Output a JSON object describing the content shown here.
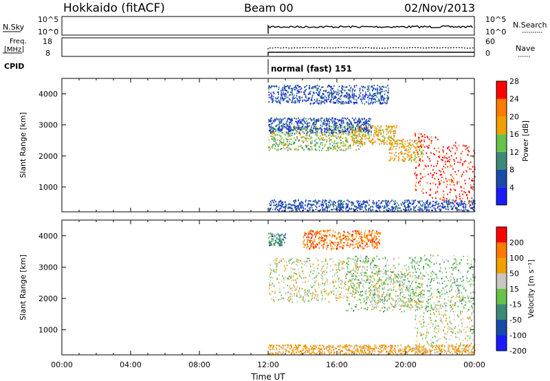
{
  "header": {
    "station": "Hokkaido (fitACF)",
    "beam": "Beam 00",
    "date": "02/Nov/2013"
  },
  "top_panels": {
    "nsky": {
      "left_label": "N.Sky",
      "left_ticks": [
        "10^5",
        "10^0"
      ],
      "right_ticks": [
        "10^5",
        "10^0"
      ],
      "right_label": "N.Search",
      "line_color": "#000000"
    },
    "freq": {
      "left_label_1": "Freq.",
      "left_label_2": "[MHz]",
      "left_ticks": [
        "18",
        "8"
      ],
      "right_ticks": [
        "60",
        "0"
      ],
      "right_label": "Nave"
    },
    "cpid": {
      "label": "CPID",
      "mode_text": "normal (fast) 151"
    }
  },
  "chart_data": [
    {
      "type": "heatmap",
      "ylabel": "Slant Range [km]",
      "y_ticks": [
        "1000",
        "2000",
        "3000",
        "4000"
      ],
      "ylim": [
        200,
        4500
      ],
      "x_ticks": [
        "00:00",
        "04:00",
        "08:00",
        "12:00",
        "16:00",
        "20:00",
        "00:00"
      ],
      "xlim_hours": [
        0,
        24
      ],
      "colorbar": {
        "label": "Power [dB]",
        "ticks": [
          "4",
          "8",
          "12",
          "16",
          "20",
          "24",
          "28"
        ],
        "colors": [
          "#1a1aff",
          "#1a4aa8",
          "#3c8a78",
          "#66c24a",
          "#f2a000",
          "#ff7a00",
          "#ff0000"
        ]
      },
      "data_start_hour": 12,
      "bands": [
        {
          "x0": 12.0,
          "x1": 17.5,
          "y_center": 2600,
          "thickness": 400,
          "level": 3
        },
        {
          "x0": 16.8,
          "x1": 19.5,
          "y_center": 2700,
          "thickness": 300,
          "level": 4
        },
        {
          "x0": 19.0,
          "x1": 21.0,
          "y_center": 2200,
          "thickness": 350,
          "level": 4
        },
        {
          "x0": 20.5,
          "x1": 24.0,
          "y_center": 1300,
          "thickness": 1000,
          "level": 6
        },
        {
          "x0": 12.0,
          "x1": 24.0,
          "y_center": 350,
          "thickness": 250,
          "level": 1
        },
        {
          "x0": 12.0,
          "x1": 19.0,
          "y_center": 4000,
          "thickness": 300,
          "level": 1
        },
        {
          "x0": 12.0,
          "x1": 18.0,
          "y_center": 3000,
          "thickness": 250,
          "level": 1
        }
      ]
    },
    {
      "type": "heatmap",
      "ylabel": "Slant Range [km]",
      "y_ticks": [
        "1000",
        "2000",
        "3000",
        "4000"
      ],
      "ylim": [
        200,
        4500
      ],
      "x_ticks": [
        "00:00",
        "04:00",
        "08:00",
        "12:00",
        "16:00",
        "20:00",
        "00:00"
      ],
      "xlim_hours": [
        0,
        24
      ],
      "xlabel": "Time UT",
      "colorbar": {
        "label": "Velocity [m s⁻¹]",
        "ticks": [
          "200",
          "100",
          "50",
          "15",
          "-15",
          "-50",
          "-100",
          "-200"
        ],
        "colors": [
          "#1a1aff",
          "#1a4aa8",
          "#3c8a78",
          "#66c24a",
          "#c8c8c0",
          "#f2a000",
          "#ff7a00",
          "#ff0000"
        ]
      },
      "data_start_hour": 12,
      "bands": [
        {
          "x0": 12.0,
          "x1": 18.5,
          "y_center": 2600,
          "thickness": 700,
          "level": 4
        },
        {
          "x0": 18.0,
          "x1": 21.0,
          "y_center": 2300,
          "thickness": 600,
          "level": 4
        },
        {
          "x0": 20.5,
          "x1": 24.0,
          "y_center": 1200,
          "thickness": 900,
          "level": 4
        },
        {
          "x0": 16.5,
          "x1": 24.0,
          "y_center": 2500,
          "thickness": 900,
          "level": 3
        },
        {
          "x0": 12.0,
          "x1": 24.0,
          "y_center": 320,
          "thickness": 220,
          "level": 5
        },
        {
          "x0": 14.0,
          "x1": 18.5,
          "y_center": 3900,
          "thickness": 300,
          "level": 6
        },
        {
          "x0": 12.0,
          "x1": 13.0,
          "y_center": 3900,
          "thickness": 200,
          "level": 2
        }
      ]
    }
  ]
}
